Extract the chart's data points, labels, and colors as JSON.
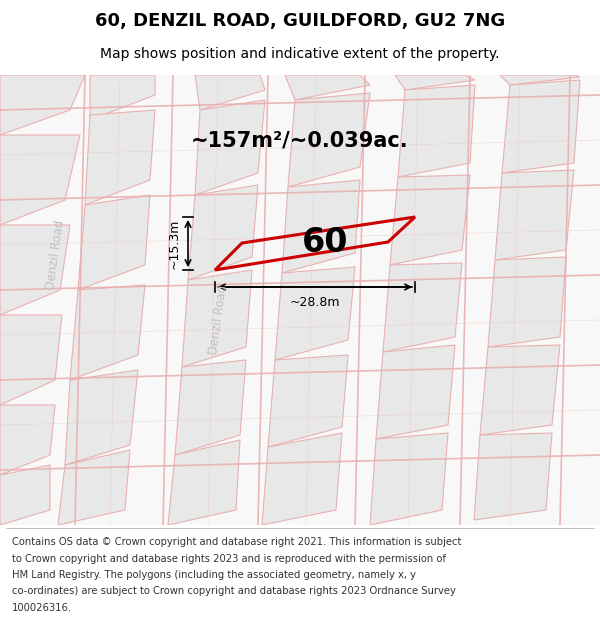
{
  "title": "60, DENZIL ROAD, GUILDFORD, GU2 7NG",
  "subtitle": "Map shows position and indicative extent of the property.",
  "footer_lines": [
    "Contains OS data © Crown copyright and database right 2021. This information is subject",
    "to Crown copyright and database rights 2023 and is reproduced with the permission of",
    "HM Land Registry. The polygons (including the associated geometry, namely x, y",
    "co-ordinates) are subject to Crown copyright and database rights 2023 Ordnance Survey",
    "100026316."
  ],
  "area_label": "~157m²/~0.039ac.",
  "number_label": "60",
  "width_label": "~28.8m",
  "height_label": "~15.3m",
  "property_outline_color": "#cc0000",
  "title_fontsize": 13,
  "subtitle_fontsize": 10,
  "footer_fontsize": 7.2,
  "road_label_left": "Denzil Road",
  "road_label_center": "Denzil Road",
  "block_color": "#e8e8e8",
  "road_line_color": "#e8b0b0",
  "map_bg": "#f8f8f8"
}
